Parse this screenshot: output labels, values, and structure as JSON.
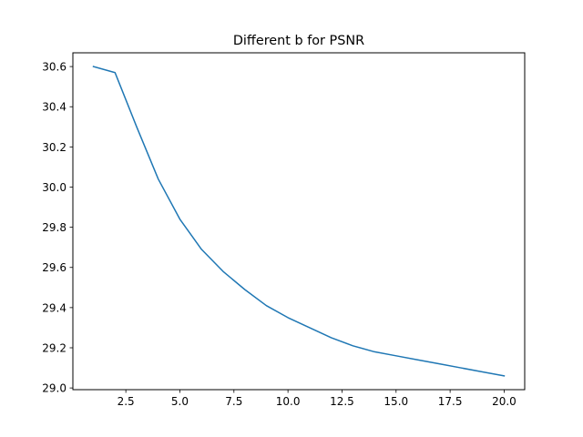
{
  "chart_data": {
    "type": "line",
    "title": "Different b for PSNR",
    "xlabel": "",
    "ylabel": "",
    "xlim": [
      0.05,
      20.95
    ],
    "ylim": [
      28.9915,
      30.6685
    ],
    "x_ticks": [
      2.5,
      5.0,
      7.5,
      10.0,
      12.5,
      15.0,
      17.5,
      20.0
    ],
    "x_tick_labels": [
      "2.5",
      "5.0",
      "7.5",
      "10.0",
      "12.5",
      "15.0",
      "17.5",
      "20.0"
    ],
    "y_ticks": [
      29.0,
      29.2,
      29.4,
      29.6,
      29.8,
      30.0,
      30.2,
      30.4,
      30.6
    ],
    "y_tick_labels": [
      "29.0",
      "29.2",
      "29.4",
      "29.6",
      "29.8",
      "30.0",
      "30.2",
      "30.4",
      "30.6"
    ],
    "grid": false,
    "series": [
      {
        "color": "#1f77b4",
        "x": [
          1,
          2,
          3,
          4,
          5,
          6,
          7,
          8,
          9,
          10,
          11,
          12,
          13,
          14,
          15,
          16,
          17,
          18,
          19,
          20
        ],
        "y": [
          30.6,
          30.57,
          30.3,
          30.04,
          29.84,
          29.69,
          29.58,
          29.49,
          29.41,
          29.35,
          29.3,
          29.25,
          29.21,
          29.18,
          29.16,
          29.14,
          29.12,
          29.1,
          29.08,
          29.06
        ]
      }
    ]
  }
}
